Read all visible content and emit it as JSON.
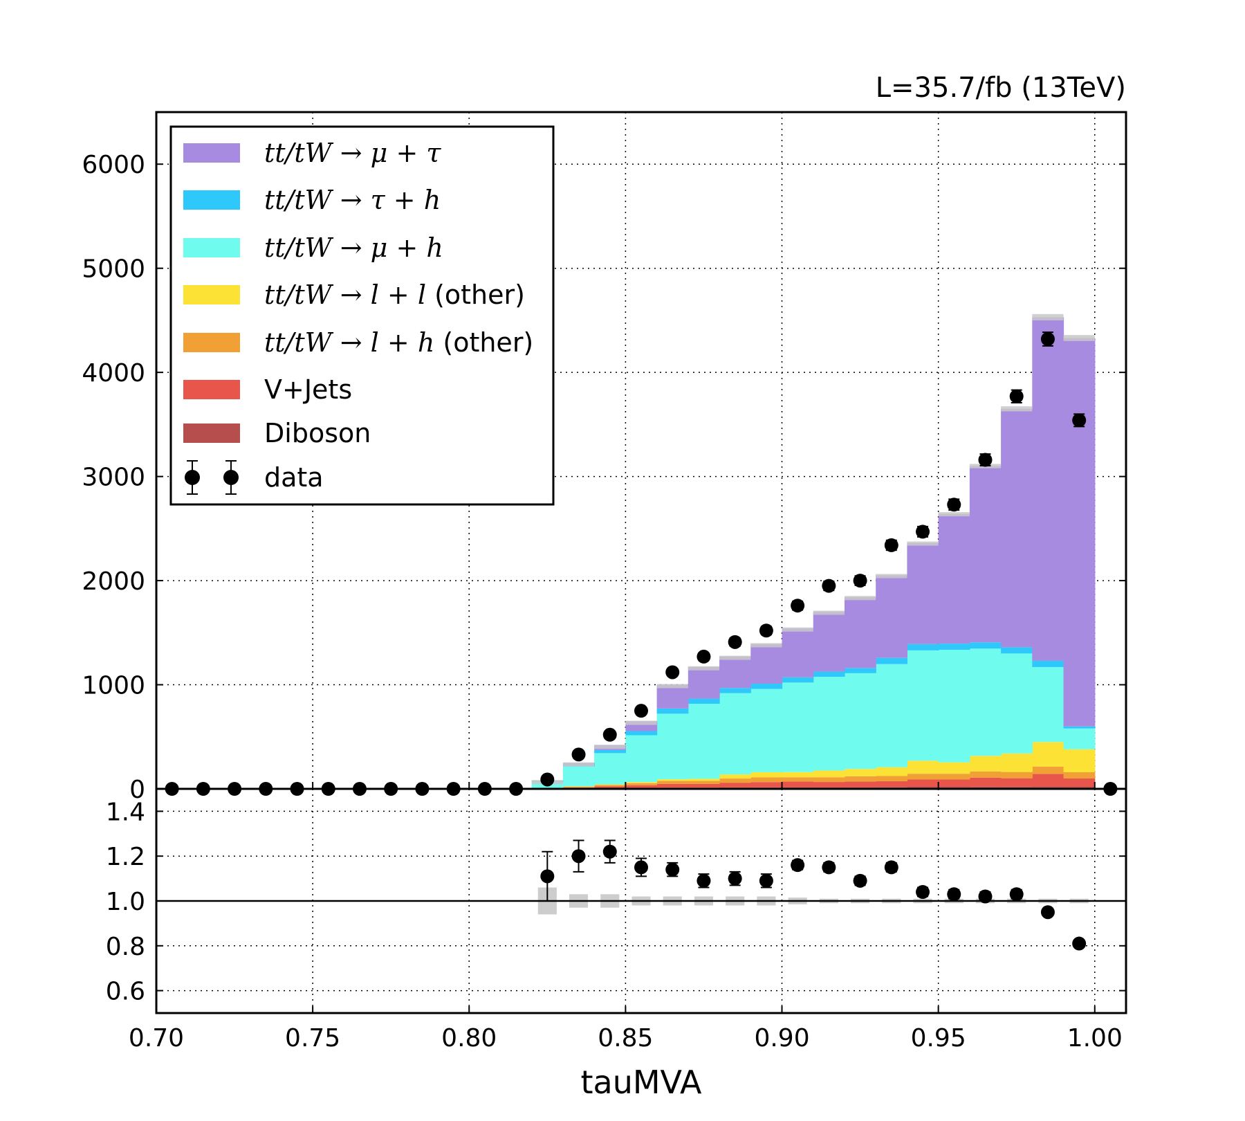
{
  "chart_data": {
    "type": "bar",
    "stacked": true,
    "lumi_label": "L=35.7/fb (13TeV)",
    "xlabel": "tauMVA",
    "ylabel": "",
    "xlim": [
      0.7,
      1.01
    ],
    "ylim": [
      0,
      6500
    ],
    "ratio_ylim": [
      0.5,
      1.5
    ],
    "grid": true,
    "legend_position": "top-left",
    "x_ticks": [
      "0.70",
      "0.75",
      "0.80",
      "0.85",
      "0.90",
      "0.95",
      "1.00"
    ],
    "y_ticks": [
      "0",
      "1000",
      "2000",
      "3000",
      "4000",
      "5000",
      "6000"
    ],
    "ratio_ticks": [
      "0.6",
      "0.8",
      "1.0",
      "1.2",
      "1.4"
    ],
    "bin_edges": [
      0.82,
      0.83,
      0.84,
      0.85,
      0.86,
      0.87,
      0.88,
      0.89,
      0.9,
      0.91,
      0.92,
      0.93,
      0.94,
      0.95,
      0.96,
      0.97,
      0.98,
      0.99,
      1.0
    ],
    "series": [
      {
        "name": "Diboson",
        "color": "#b64e4e",
        "values": [
          2,
          4,
          8,
          10,
          12,
          12,
          14,
          15,
          16,
          16,
          16,
          18,
          20,
          20,
          22,
          22,
          24,
          20
        ]
      },
      {
        "name": "V+Jets",
        "color": "#e8554a",
        "values": [
          3,
          8,
          15,
          25,
          35,
          35,
          45,
          50,
          55,
          50,
          55,
          55,
          70,
          70,
          85,
          80,
          120,
          80
        ]
      },
      {
        "name": "tt/tW→l+h (other)",
        "color": "#f0a035",
        "values": [
          4,
          10,
          15,
          20,
          30,
          30,
          40,
          45,
          40,
          45,
          50,
          50,
          55,
          55,
          60,
          60,
          70,
          60
        ]
      },
      {
        "name": "tt/tW→l+l (other)",
        "color": "#fde236",
        "values": [
          1,
          3,
          5,
          10,
          15,
          20,
          40,
          50,
          50,
          65,
          70,
          85,
          125,
          110,
          150,
          178,
          236,
          220
        ]
      },
      {
        "name": "tt/tW→μ+h",
        "color": "#6ffcee",
        "values": [
          60,
          190,
          300,
          450,
          630,
          720,
          780,
          800,
          860,
          900,
          920,
          990,
          1060,
          1080,
          1030,
          960,
          720,
          200
        ]
      },
      {
        "name": "tt/tW→τ+h",
        "color": "#2ec8fa",
        "values": [
          5,
          15,
          30,
          40,
          50,
          50,
          50,
          50,
          50,
          50,
          50,
          60,
          60,
          60,
          60,
          60,
          60,
          20
        ]
      },
      {
        "name": "tt/tW→μ+τ",
        "color": "#a78be0",
        "values": [
          5,
          20,
          47,
          95,
          228,
          303,
          301,
          380,
          469,
          574,
          679,
          792,
          970,
          1245,
          1693,
          2290,
          3300,
          3730
        ]
      }
    ],
    "mc_uncertainty": [
      4,
      4,
      4,
      4,
      4,
      4,
      4,
      4,
      4,
      4,
      4,
      4,
      4,
      4,
      4,
      4,
      4,
      4
    ],
    "data_points": {
      "name": "data",
      "color": "#000000",
      "x": [
        0.705,
        0.715,
        0.725,
        0.735,
        0.745,
        0.755,
        0.765,
        0.775,
        0.785,
        0.795,
        0.805,
        0.815,
        0.825,
        0.835,
        0.845,
        0.855,
        0.865,
        0.875,
        0.885,
        0.895,
        0.905,
        0.915,
        0.925,
        0.935,
        0.945,
        0.955,
        0.965,
        0.975,
        0.985,
        0.995,
        1.005
      ],
      "y": [
        0,
        0,
        0,
        0,
        0,
        0,
        0,
        0,
        0,
        0,
        0,
        0,
        90,
        330,
        520,
        750,
        1120,
        1270,
        1410,
        1520,
        1760,
        1950,
        2000,
        2340,
        2470,
        2730,
        3160,
        3770,
        4320,
        3540,
        0
      ],
      "yerr": [
        0,
        0,
        0,
        0,
        0,
        0,
        0,
        0,
        0,
        0,
        0,
        0,
        10,
        18,
        23,
        27,
        33,
        36,
        38,
        39,
        42,
        44,
        45,
        48,
        50,
        52,
        56,
        61,
        66,
        60,
        0
      ]
    },
    "ratio": {
      "x": [
        0.825,
        0.835,
        0.845,
        0.855,
        0.865,
        0.875,
        0.885,
        0.895,
        0.905,
        0.915,
        0.925,
        0.935,
        0.945,
        0.955,
        0.965,
        0.975,
        0.985,
        0.995
      ],
      "y": [
        1.11,
        1.2,
        1.22,
        1.15,
        1.14,
        1.09,
        1.1,
        1.09,
        1.16,
        1.15,
        1.09,
        1.15,
        1.04,
        1.03,
        1.02,
        1.03,
        0.95,
        0.81
      ],
      "yerr": [
        0.11,
        0.07,
        0.05,
        0.04,
        0.03,
        0.03,
        0.03,
        0.03,
        0.02,
        0.02,
        0.02,
        0.02,
        0.02,
        0.02,
        0.02,
        0.02,
        0.015,
        0.015
      ],
      "mc_band": [
        0.06,
        0.03,
        0.03,
        0.02,
        0.02,
        0.02,
        0.02,
        0.02,
        0.015,
        0.01,
        0.01,
        0.01,
        0.01,
        0.01,
        0.01,
        0.01,
        0.01,
        0.01
      ]
    },
    "legend": [
      {
        "math": "tt/tW → μ + τ",
        "suffix": "",
        "color": "#a78be0",
        "kind": "box"
      },
      {
        "math": "tt/tW → τ + h",
        "suffix": "",
        "color": "#2ec8fa",
        "kind": "box"
      },
      {
        "math": "tt/tW → μ + h",
        "suffix": "",
        "color": "#6ffcee",
        "kind": "box"
      },
      {
        "math": "tt/tW → l + l",
        "suffix": " (other)",
        "color": "#fde236",
        "kind": "box"
      },
      {
        "math": "tt/tW → l + h",
        "suffix": " (other)",
        "color": "#f0a035",
        "kind": "box"
      },
      {
        "math": "",
        "suffix": "V+Jets",
        "color": "#e8554a",
        "kind": "box"
      },
      {
        "math": "",
        "suffix": "Diboson",
        "color": "#b64e4e",
        "kind": "box"
      },
      {
        "math": "",
        "suffix": "data",
        "color": "#000000",
        "kind": "marker"
      }
    ]
  }
}
